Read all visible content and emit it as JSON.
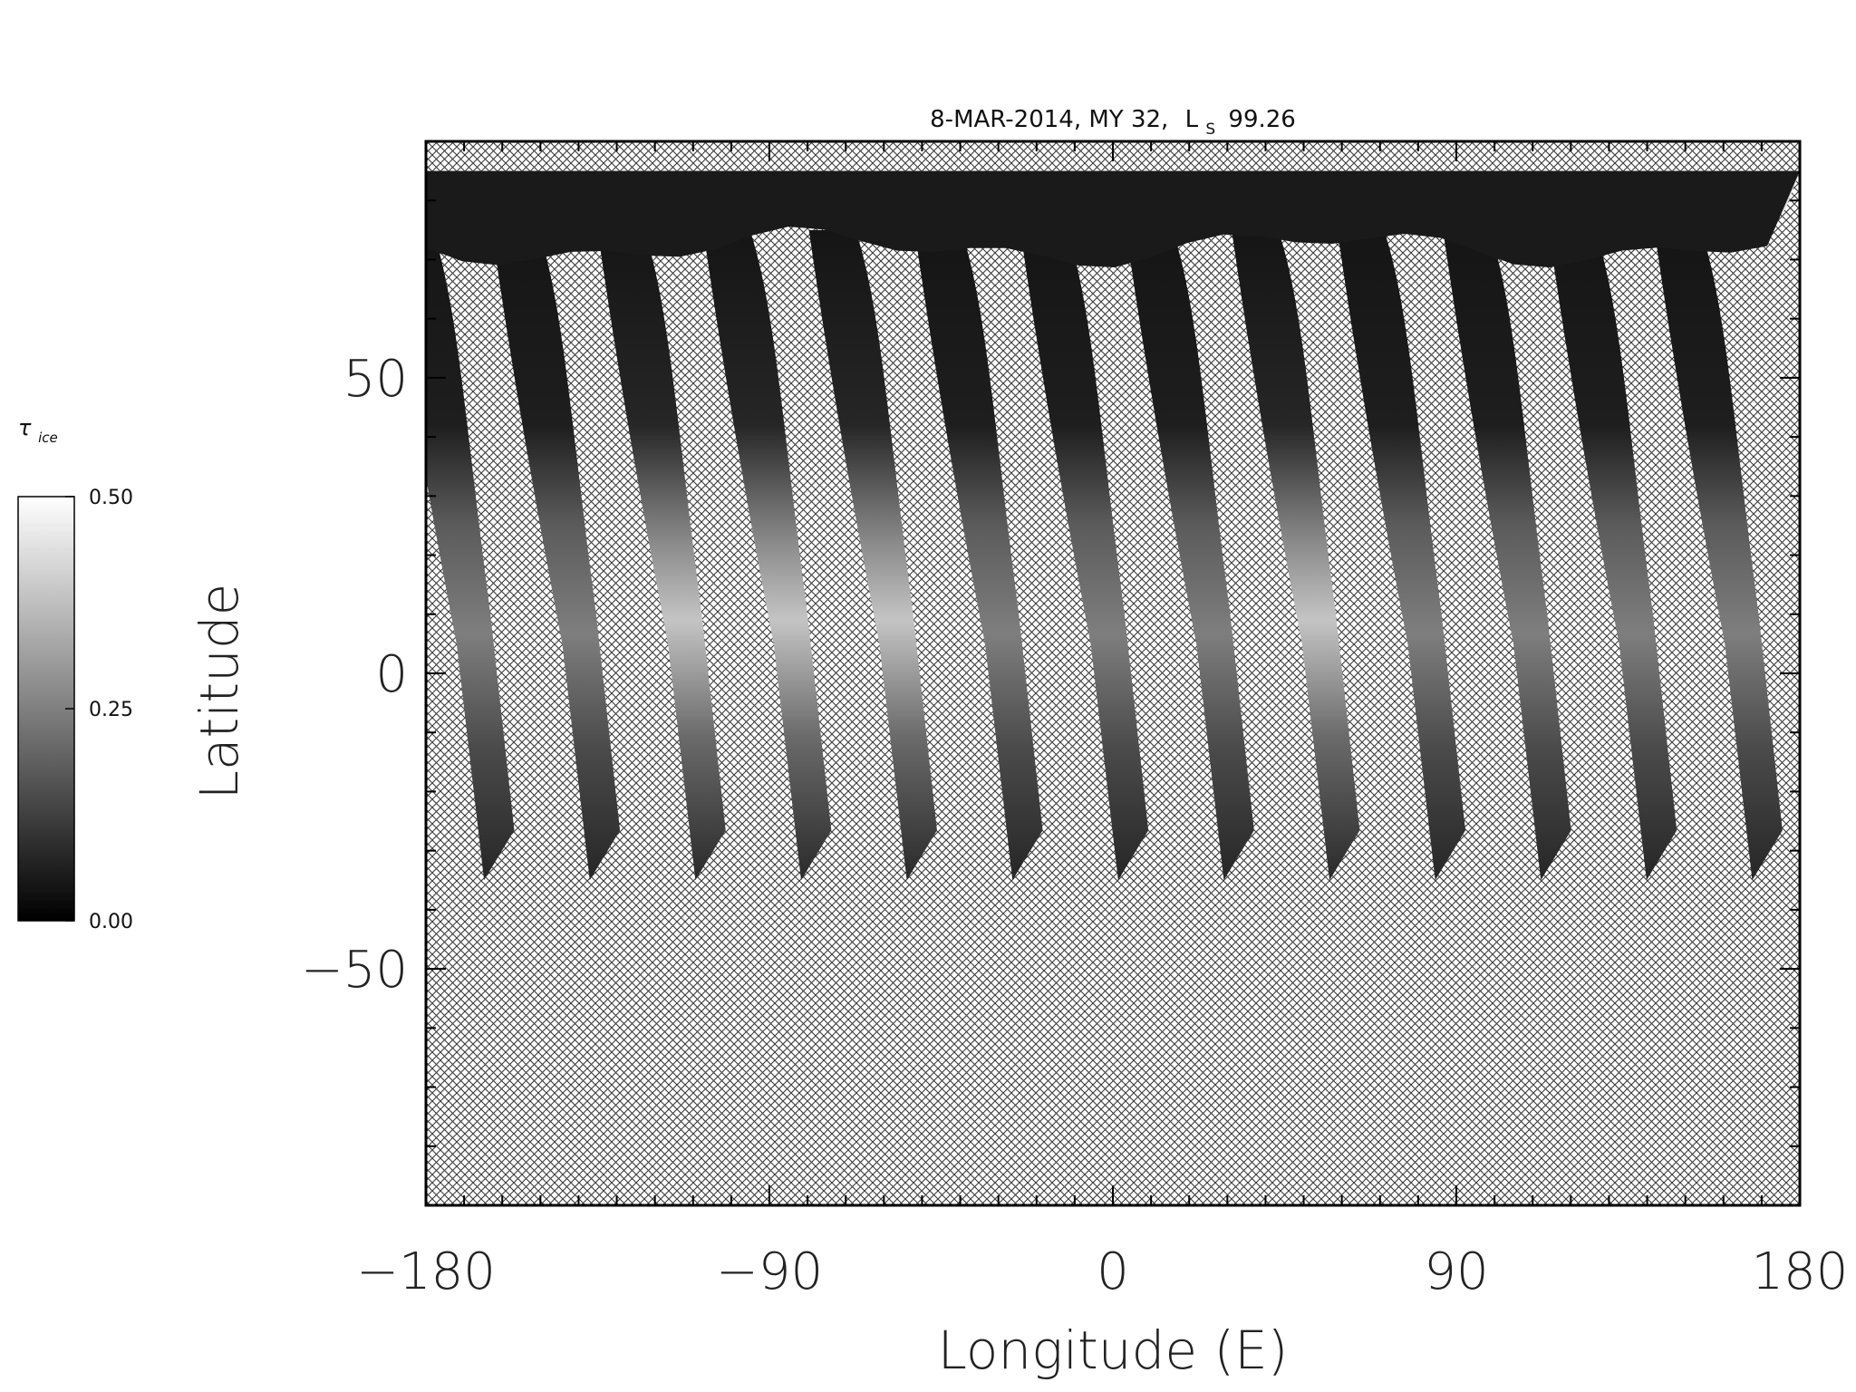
{
  "title": {
    "date": "8-MAR-2014, MY 32,",
    "ls_symbol": "L",
    "ls_subscript": "S",
    "ls_value": "99.26"
  },
  "colorbar": {
    "symbol": "τ",
    "subscript": "ice",
    "ticks": [
      "0.50",
      "0.25",
      "0.00"
    ],
    "tick_values": [
      0.5,
      0.25,
      0.0
    ],
    "range": [
      0.0,
      0.5
    ],
    "colormap": "grayscale (black=0.00, white=0.50)"
  },
  "axes": {
    "xlabel": "Longitude (E)",
    "ylabel": "Latitude",
    "xlim": [
      -180,
      180
    ],
    "ylim": [
      -90,
      90
    ],
    "x_ticks": [
      "-180",
      "-90",
      "0",
      "90",
      "180"
    ],
    "x_tick_values": [
      -180,
      -90,
      0,
      90,
      180
    ],
    "y_ticks": [
      "50",
      "0",
      "-50"
    ],
    "y_tick_values": [
      50,
      0,
      -50
    ],
    "x_minor_step": 10,
    "y_minor_step": 10
  },
  "map": {
    "no_data_fill": "cross-hatched",
    "north_polar_cap_latitude_range": [
      75,
      85
    ],
    "swath_count": 13,
    "swath_latitude_range": [
      -35,
      75
    ]
  },
  "colors": {
    "background": "#ffffff",
    "frame": "#000000",
    "hatch": "#3a3a3a"
  }
}
